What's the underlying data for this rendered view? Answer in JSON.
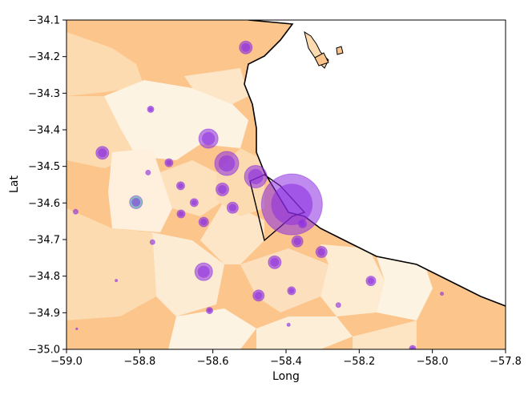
{
  "chart_data": {
    "type": "scatter",
    "title": "",
    "xlabel": "Long",
    "ylabel": "Lat",
    "xlim": [
      -59.0,
      -57.8
    ],
    "ylim": [
      -35.0,
      -34.1
    ],
    "xticks": [
      -59.0,
      -58.8,
      -58.6,
      -58.4,
      -58.2,
      -58.0,
      -57.8
    ],
    "xtick_labels": [
      "−59.0",
      "−58.8",
      "−58.6",
      "−58.4",
      "−58.2",
      "−58.0",
      "−57.8"
    ],
    "yticks": [
      -34.1,
      -34.2,
      -34.3,
      -34.4,
      -34.5,
      -34.6,
      -34.7,
      -34.8,
      -34.9,
      -35.0
    ],
    "ytick_labels": [
      "−34.1",
      "−34.2",
      "−34.3",
      "−34.4",
      "−34.5",
      "−34.6",
      "−34.7",
      "−34.8",
      "−34.9",
      "−35.0"
    ],
    "grid": false,
    "background_map": "choropleth of districts shaded from pale cream to light orange, with a black coastline/boundary outline",
    "colors": {
      "marker_fill": "#8a2be2",
      "highlight_marker_fill": "#3aa0b0",
      "map_light": "#fdf3e3",
      "map_mid": "#fddbb0",
      "map_dark": "#fcc58c",
      "coastline": "#000000"
    },
    "points": [
      {
        "x": -58.384,
        "y": -34.604,
        "size": 38
      },
      {
        "x": -58.562,
        "y": -34.492,
        "size": 15
      },
      {
        "x": -58.612,
        "y": -34.424,
        "size": 12
      },
      {
        "x": -58.483,
        "y": -34.528,
        "size": 14
      },
      {
        "x": -58.625,
        "y": -34.788,
        "size": 11
      },
      {
        "x": -58.51,
        "y": -34.175,
        "size": 8
      },
      {
        "x": -58.902,
        "y": -34.463,
        "size": 8
      },
      {
        "x": -58.574,
        "y": -34.563,
        "size": 8
      },
      {
        "x": -58.546,
        "y": -34.613,
        "size": 7
      },
      {
        "x": -58.81,
        "y": -34.598,
        "size": 8,
        "highlight": true
      },
      {
        "x": -58.431,
        "y": -34.762,
        "size": 8
      },
      {
        "x": -58.475,
        "y": -34.853,
        "size": 7
      },
      {
        "x": -58.369,
        "y": -34.705,
        "size": 7
      },
      {
        "x": -58.303,
        "y": -34.734,
        "size": 7
      },
      {
        "x": -58.168,
        "y": -34.813,
        "size": 6
      },
      {
        "x": -58.625,
        "y": -34.652,
        "size": 6
      },
      {
        "x": -58.687,
        "y": -34.63,
        "size": 5
      },
      {
        "x": -58.688,
        "y": -34.553,
        "size": 5
      },
      {
        "x": -58.72,
        "y": -34.49,
        "size": 5
      },
      {
        "x": -58.651,
        "y": -34.599,
        "size": 5
      },
      {
        "x": -58.355,
        "y": -34.657,
        "size": 5
      },
      {
        "x": -58.385,
        "y": -34.84,
        "size": 5
      },
      {
        "x": -58.77,
        "y": -34.344,
        "size": 4
      },
      {
        "x": -58.609,
        "y": -34.894,
        "size": 4
      },
      {
        "x": -58.765,
        "y": -34.707,
        "size": 3
      },
      {
        "x": -58.975,
        "y": -34.624,
        "size": 3
      },
      {
        "x": -58.257,
        "y": -34.879,
        "size": 3
      },
      {
        "x": -58.777,
        "y": -34.517,
        "size": 3
      },
      {
        "x": -58.054,
        "y": -34.998,
        "size": 4
      },
      {
        "x": -58.393,
        "y": -34.933,
        "size": 2
      },
      {
        "x": -57.974,
        "y": -34.848,
        "size": 2
      },
      {
        "x": -58.864,
        "y": -34.812,
        "size": 1.5
      },
      {
        "x": -58.972,
        "y": -34.944,
        "size": 1.2
      }
    ]
  }
}
